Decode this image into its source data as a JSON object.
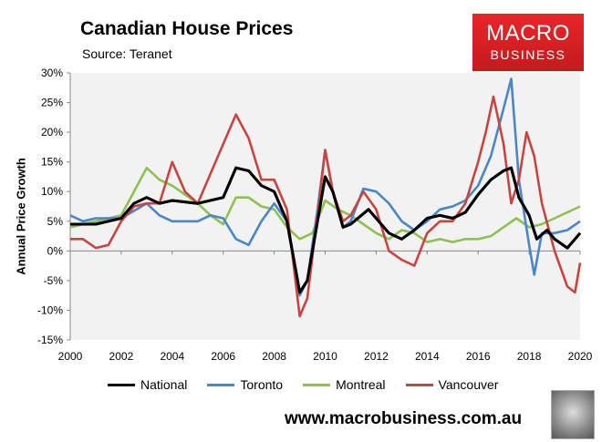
{
  "header": {
    "title": "Canadian House Prices",
    "source": "Source: Teranet"
  },
  "logo": {
    "line1": "MACRO",
    "line2": "BUSINESS",
    "color": "#d9201f"
  },
  "footer": {
    "url": "www.macrobusiness.com.au"
  },
  "chart_data": {
    "type": "line",
    "title": "Canadian House Prices",
    "ylabel": "Annual Price Growth",
    "xlabel": "",
    "xlim": [
      2000,
      2020
    ],
    "ylim": [
      -15,
      30
    ],
    "xticks": [
      "2000",
      "2002",
      "2004",
      "2006",
      "2008",
      "2010",
      "2012",
      "2014",
      "2016",
      "2018",
      "2020"
    ],
    "yticks": [
      "30%",
      "25%",
      "20%",
      "15%",
      "10%",
      "5%",
      "0%",
      "-5%",
      "-10%",
      "-15%"
    ],
    "legend": "bottom",
    "series": [
      {
        "name": "National",
        "color": "#000000",
        "x": [
          2000,
          2001,
          2002,
          2002.5,
          2003,
          2003.5,
          2004,
          2005,
          2006,
          2006.5,
          2007,
          2007.5,
          2008,
          2008.5,
          2009,
          2009.3,
          2009.7,
          2010,
          2010.3,
          2010.7,
          2011,
          2011.7,
          2012,
          2012.5,
          2013,
          2013.5,
          2014,
          2014.5,
          2015,
          2015.5,
          2016,
          2016.5,
          2017,
          2017.3,
          2017.6,
          2018,
          2018.3,
          2018.7,
          2019,
          2019.5,
          2020
        ],
        "y": [
          4.5,
          4.5,
          5.5,
          8,
          9,
          8,
          8.5,
          8,
          9,
          14,
          13.5,
          11,
          10,
          5,
          -7,
          -5,
          5,
          12.5,
          10,
          4,
          4.5,
          7,
          5.5,
          3,
          2,
          3.5,
          5.5,
          6,
          5.5,
          6.5,
          9.5,
          12,
          13.5,
          14,
          9,
          6,
          2,
          3.5,
          2,
          0.5,
          3
        ]
      },
      {
        "name": "Toronto",
        "color": "#4a86c8",
        "x": [
          2000,
          2000.5,
          2001,
          2002,
          2003,
          2003.5,
          2004,
          2005,
          2005.5,
          2006,
          2006.5,
          2007,
          2007.5,
          2008,
          2008.5,
          2009,
          2009.3,
          2009.7,
          2010,
          2010.3,
          2010.7,
          2011,
          2011.5,
          2012,
          2012.5,
          2013,
          2013.5,
          2014,
          2014.5,
          2015,
          2015.5,
          2016,
          2016.5,
          2017,
          2017.3,
          2017.6,
          2018,
          2018.2,
          2018.5,
          2019,
          2019.5,
          2020
        ],
        "y": [
          6,
          5,
          5.5,
          5.5,
          8,
          6,
          5,
          5,
          6,
          5.5,
          2,
          1,
          5,
          8,
          5,
          -7.5,
          -5,
          7,
          17,
          10,
          4,
          5,
          10.5,
          10,
          8,
          5,
          3.5,
          5,
          7,
          7.5,
          8.5,
          11,
          16,
          24,
          29,
          12,
          1,
          -4,
          3,
          3,
          3.5,
          5
        ]
      },
      {
        "name": "Montreal",
        "color": "#8dc151",
        "x": [
          2000,
          2001,
          2002,
          2002.5,
          2003,
          2003.5,
          2004,
          2005,
          2005.5,
          2006,
          2006.5,
          2007,
          2007.5,
          2008,
          2008.5,
          2009,
          2009.5,
          2010,
          2010.5,
          2011,
          2011.5,
          2012,
          2012.5,
          2013,
          2013.5,
          2014,
          2014.5,
          2015,
          2015.5,
          2016,
          2016.5,
          2017,
          2017.5,
          2018,
          2018.5,
          2019,
          2019.5,
          2020
        ],
        "y": [
          4,
          5,
          6,
          10,
          14,
          12,
          11,
          8,
          6,
          4.5,
          9,
          9,
          7.5,
          7,
          4,
          2,
          3,
          8.5,
          7,
          6,
          4.5,
          3,
          2,
          3.5,
          3,
          1.5,
          2,
          1.5,
          2,
          2,
          2.5,
          4,
          5.5,
          4,
          4.5,
          5.5,
          6.5,
          7.5
        ]
      },
      {
        "name": "Vancouver",
        "color": "#c9443f",
        "x": [
          2000,
          2000.5,
          2001,
          2001.5,
          2002,
          2002.5,
          2003,
          2003.5,
          2004,
          2004.5,
          2005,
          2005.5,
          2006,
          2006.5,
          2007,
          2007.5,
          2008,
          2008.5,
          2009,
          2009.3,
          2009.7,
          2010,
          2010.3,
          2010.7,
          2011,
          2011.5,
          2012,
          2012.5,
          2013,
          2013.5,
          2014,
          2014.5,
          2015,
          2015.5,
          2016,
          2016.3,
          2016.6,
          2017,
          2017.3,
          2017.6,
          2017.9,
          2018.2,
          2018.5,
          2019,
          2019.5,
          2019.8,
          2020
        ],
        "y": [
          2,
          2,
          0.5,
          1,
          5,
          7.5,
          8,
          8,
          15,
          10,
          8,
          13,
          18,
          23,
          19,
          12,
          12,
          7,
          -11,
          -8,
          6,
          17,
          10,
          5,
          6,
          10,
          7,
          0,
          -1.5,
          -2.5,
          3,
          5,
          5,
          8,
          15,
          20,
          26,
          18,
          8,
          12,
          20,
          16,
          8,
          0,
          -6,
          -7,
          -2
        ]
      }
    ]
  }
}
